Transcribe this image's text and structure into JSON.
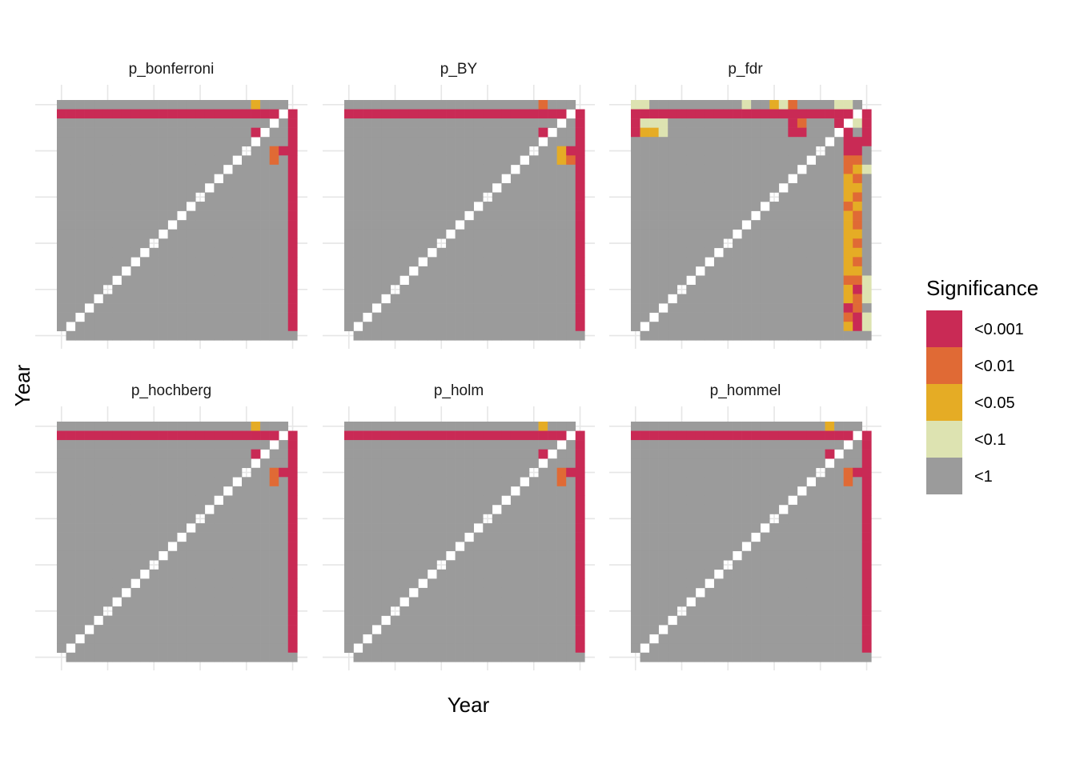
{
  "chart_data": {
    "type": "heatmap",
    "xlabel": "Year",
    "ylabel": "Year",
    "legend": {
      "title": "Significance",
      "position": "right",
      "levels": [
        {
          "label": "<0.001",
          "code": 4,
          "color": "#c92a55"
        },
        {
          "label": "<0.01",
          "code": 3,
          "color": "#e06a35"
        },
        {
          "label": "<0.05",
          "code": 2,
          "color": "#e5ac25"
        },
        {
          "label": "<0.1",
          "code": 1,
          "color": "#dde3b1"
        },
        {
          "label": "<1",
          "code": 0,
          "color": "#9b9b9b"
        }
      ]
    },
    "n_years": 26,
    "grid": true,
    "facets": [
      {
        "name": "p_bonferroni",
        "matrix": [
          "00000000000000000000020004",
          "44444444444444444444444404",
          "00000000000000000000000004",
          "00000000000000000000040004",
          "00000000000000000000000004",
          "00000000000000000000000344",
          "00000000000000000000000304",
          "00000000000000000000000004",
          "00000000000000000000000004",
          "00000000000000000000000004",
          "00000000000000000000000004",
          "00000000000000000000000004",
          "00000000000000000000000004",
          "00000000000000000000000004",
          "00000000000000000000000004",
          "00000000000000000000000004",
          "00000000000000000000000004",
          "00000000000000000000000004",
          "00000000000000000000000004",
          "00000000000000000000000004",
          "00000000000000000000000004",
          "00000000000000000000000004",
          "00000000000000000000000004",
          "00000000000000000000000004",
          "00000000000000000000000004",
          "00000000000000000000000000"
        ]
      },
      {
        "name": "p_BY",
        "matrix": [
          "00000000000000000000030004",
          "44444444444444444444444404",
          "00000000000000000000000004",
          "00000000000000000000040004",
          "00000000000000000000000004",
          "00000000000000000000000244",
          "00000000000000000000000234",
          "00000000000000000000000004",
          "00000000000000000000000004",
          "00000000000000000000000004",
          "00000000000000000000000004",
          "00000000000000000000000004",
          "00000000000000000000000004",
          "00000000000000000000000004",
          "00000000000000000000000004",
          "00000000000000000000000004",
          "00000000000000000000000004",
          "00000000000000000000000004",
          "00000000000000000000000004",
          "00000000000000000000000004",
          "00000000000000000000000004",
          "00000000000000000000000004",
          "00000000000000000000000004",
          "00000000000000000000000004",
          "00000000000000000000000004",
          "00000000000000000000000000"
        ]
      },
      {
        "name": "p_fdr",
        "matrix": [
          "11000000000010021300001104",
          "44444444444444444444444404",
          "41110000000000000430004414",
          "42210000000000000440004404",
          "00000000000000000000000444",
          "00000000000000000000000440",
          "00000000000000000000000330",
          "00000000000000000000000321",
          "00000000000000000000000230",
          "00000000000000000000000220",
          "00000000000000000000000230",
          "00000000000000000000000320",
          "00000000000000000000000230",
          "00000000000000000000000230",
          "00000000000000000000000220",
          "00000000000000000000000230",
          "00000000000000000000000220",
          "00000000000000000000000230",
          "00000000000000000000000220",
          "00000000000000000000000331",
          "00000000000000000000000241",
          "00000000000000000000000231",
          "00000000000000000000000430",
          "00000000000000000000000341",
          "00000000000000000000000241",
          "00000000000000000000000000"
        ]
      },
      {
        "name": "p_hochberg",
        "matrix": [
          "00000000000000000000020004",
          "44444444444444444444444404",
          "00000000000000000000000004",
          "00000000000000000000040004",
          "00000000000000000000000004",
          "00000000000000000000000344",
          "00000000000000000000000304",
          "00000000000000000000000004",
          "00000000000000000000000004",
          "00000000000000000000000004",
          "00000000000000000000000004",
          "00000000000000000000000004",
          "00000000000000000000000004",
          "00000000000000000000000004",
          "00000000000000000000000004",
          "00000000000000000000000004",
          "00000000000000000000000004",
          "00000000000000000000000004",
          "00000000000000000000000004",
          "00000000000000000000000004",
          "00000000000000000000000004",
          "00000000000000000000000004",
          "00000000000000000000000004",
          "00000000000000000000000004",
          "00000000000000000000000004",
          "00000000000000000000000000"
        ]
      },
      {
        "name": "p_holm",
        "matrix": [
          "00000000000000000000020004",
          "44444444444444444444444404",
          "00000000000000000000000004",
          "00000000000000000000040004",
          "00000000000000000000000004",
          "00000000000000000000000344",
          "00000000000000000000000304",
          "00000000000000000000000004",
          "00000000000000000000000004",
          "00000000000000000000000004",
          "00000000000000000000000004",
          "00000000000000000000000004",
          "00000000000000000000000004",
          "00000000000000000000000004",
          "00000000000000000000000004",
          "00000000000000000000000004",
          "00000000000000000000000004",
          "00000000000000000000000004",
          "00000000000000000000000004",
          "00000000000000000000000004",
          "00000000000000000000000004",
          "00000000000000000000000004",
          "00000000000000000000000004",
          "00000000000000000000000004",
          "00000000000000000000000004",
          "00000000000000000000000000"
        ]
      },
      {
        "name": "p_hommel",
        "matrix": [
          "00000000000000000000020004",
          "44444444444444444444444404",
          "00000000000000000000000004",
          "00000000000000000000040004",
          "00000000000000000000000004",
          "00000000000000000000000344",
          "00000000000000000000000304",
          "00000000000000000000000004",
          "00000000000000000000000004",
          "00000000000000000000000004",
          "00000000000000000000000004",
          "00000000000000000000000004",
          "00000000000000000000000004",
          "00000000000000000000000004",
          "00000000000000000000000004",
          "00000000000000000000000004",
          "00000000000000000000000004",
          "00000000000000000000000004",
          "00000000000000000000000004",
          "00000000000000000000000004",
          "00000000000000000000000004",
          "00000000000000000000000004",
          "00000000000000000000000004",
          "00000000000000000000000004",
          "00000000000000000000000004",
          "00000000000000000000000000"
        ]
      }
    ]
  }
}
